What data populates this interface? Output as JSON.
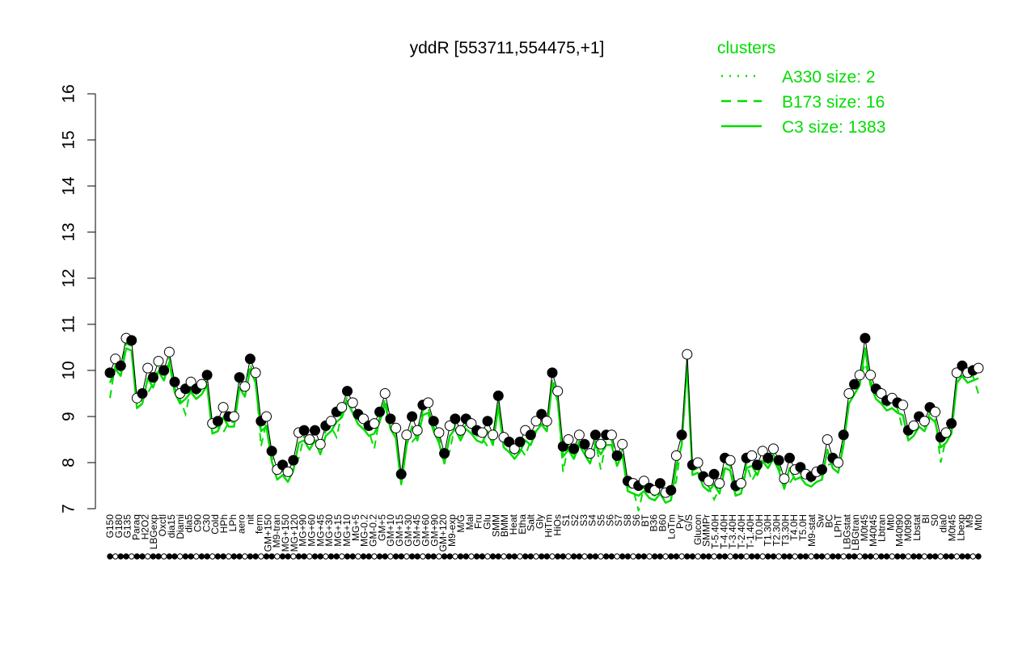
{
  "chart_data": {
    "type": "line",
    "title": "yddR [553711,554475,+1]",
    "xlabel": "",
    "ylabel": "",
    "ylim": [
      7,
      16
    ],
    "yticks": [
      "7",
      "8",
      "9",
      "10",
      "11",
      "12",
      "13",
      "14",
      "15",
      "16"
    ],
    "grid": false,
    "legend": {
      "position": "top-right",
      "title": "clusters",
      "color": "#00dd00",
      "entries": [
        {
          "label": "A330 size: 2",
          "style": "dotted"
        },
        {
          "label": "B173 size: 16",
          "style": "dashed"
        },
        {
          "label": "C3 size: 1383",
          "style": "solid"
        }
      ]
    },
    "colors": {
      "lines": "#00dd00",
      "points_open": "#ffffff",
      "points_filled": "#000000",
      "axis": "#000000"
    },
    "x_tick_labels": [
      "G150",
      "G180",
      "G135",
      "Paraq",
      "H2O2",
      "LBGexp",
      "Oxctl",
      "dia15",
      "Diami",
      "dia5",
      "C90",
      "C30",
      "Cold",
      "HPh",
      "LPh",
      "aero",
      "nit",
      "ferm",
      "GM+150",
      "M9-tran",
      "MG+150",
      "MG+120",
      "MG+90",
      "MG+60",
      "MG+45",
      "MG+30",
      "MG+15",
      "MG+10",
      "MG+5",
      "MG-0.2",
      "GM-0.2",
      "GM+5",
      "GM+10",
      "GM+15",
      "GM+30",
      "GM+45",
      "GM+60",
      "GM+90",
      "GM+120",
      "M9-exp",
      "M/G",
      "Mal",
      "Fru",
      "Glu",
      "SMM",
      "BMM",
      "Heat",
      "Etha",
      "Salt",
      "Gly",
      "HiTm",
      "HiOs",
      "S1",
      "S2",
      "S3",
      "S4",
      "S5",
      "S6",
      "S7",
      "S8",
      "S6",
      "BT",
      "B36",
      "B60",
      "LoTm",
      "Pyr",
      "G/S",
      "Glucon",
      "SMMPr",
      "T-5.40H",
      "T-4.40H",
      "T-3.40H",
      "T-2.40H",
      "T-1.40H",
      "T0.0H",
      "T1.30H",
      "T2.30H",
      "T3.30H",
      "T4.0H",
      "T5.0H",
      "M9-stat",
      "Sw",
      "BC",
      "LPhT",
      "LBGstat",
      "LBGtran",
      "M0t45",
      "M40t45",
      "Lbtran",
      "Mt0",
      "M40t90",
      "M0t90",
      "Lbstat",
      "BI",
      "S0",
      "dia0",
      "M0t45",
      "Lbexp",
      "M9",
      "Mt0"
    ],
    "series": [
      {
        "name": "",
        "style": "solid",
        "points": [
          {
            "x": 1,
            "y": 9.95
          },
          {
            "x": 2,
            "y": 10.25
          },
          {
            "x": 3,
            "y": 10.1
          },
          {
            "x": 4,
            "y": 10.7
          },
          {
            "x": 5,
            "y": 10.65
          },
          {
            "x": 6,
            "y": 9.4
          },
          {
            "x": 7,
            "y": 9.5
          },
          {
            "x": 8,
            "y": 10.05
          },
          {
            "x": 9,
            "y": 9.85
          },
          {
            "x": 10,
            "y": 10.2
          },
          {
            "x": 11,
            "y": 10.0
          },
          {
            "x": 12,
            "y": 10.4
          },
          {
            "x": 13,
            "y": 9.75
          },
          {
            "x": 14,
            "y": 9.5
          },
          {
            "x": 15,
            "y": 9.6
          },
          {
            "x": 16,
            "y": 9.75
          },
          {
            "x": 17,
            "y": 9.6
          },
          {
            "x": 18,
            "y": 9.7
          },
          {
            "x": 19,
            "y": 9.9
          },
          {
            "x": 20,
            "y": 8.85
          },
          {
            "x": 21,
            "y": 8.9
          },
          {
            "x": 22,
            "y": 9.2
          },
          {
            "x": 23,
            "y": 9.0
          },
          {
            "x": 24,
            "y": 9.0
          },
          {
            "x": 25,
            "y": 9.85
          },
          {
            "x": 26,
            "y": 9.65
          },
          {
            "x": 27,
            "y": 10.25
          },
          {
            "x": 28,
            "y": 9.95
          },
          {
            "x": 29,
            "y": 8.9
          },
          {
            "x": 30,
            "y": 9.0
          },
          {
            "x": 31,
            "y": 8.25
          },
          {
            "x": 32,
            "y": 7.85
          },
          {
            "x": 33,
            "y": 7.95
          },
          {
            "x": 34,
            "y": 7.8
          },
          {
            "x": 35,
            "y": 8.05
          },
          {
            "x": 36,
            "y": 8.65
          },
          {
            "x": 37,
            "y": 8.7
          },
          {
            "x": 38,
            "y": 8.5
          },
          {
            "x": 39,
            "y": 8.7
          },
          {
            "x": 40,
            "y": 8.4
          },
          {
            "x": 41,
            "y": 8.8
          },
          {
            "x": 42,
            "y": 8.9
          },
          {
            "x": 43,
            "y": 9.1
          },
          {
            "x": 44,
            "y": 9.2
          },
          {
            "x": 45,
            "y": 9.55
          },
          {
            "x": 46,
            "y": 9.3
          },
          {
            "x": 47,
            "y": 9.05
          },
          {
            "x": 48,
            "y": 8.95
          },
          {
            "x": 49,
            "y": 8.8
          },
          {
            "x": 50,
            "y": 8.85
          },
          {
            "x": 51,
            "y": 9.1
          },
          {
            "x": 52,
            "y": 9.5
          },
          {
            "x": 53,
            "y": 8.95
          },
          {
            "x": 54,
            "y": 8.75
          },
          {
            "x": 55,
            "y": 7.75
          },
          {
            "x": 56,
            "y": 8.6
          },
          {
            "x": 57,
            "y": 9.0
          },
          {
            "x": 58,
            "y": 8.7
          },
          {
            "x": 59,
            "y": 9.25
          },
          {
            "x": 60,
            "y": 9.3
          },
          {
            "x": 61,
            "y": 8.9
          },
          {
            "x": 62,
            "y": 8.65
          },
          {
            "x": 63,
            "y": 8.2
          },
          {
            "x": 64,
            "y": 8.8
          },
          {
            "x": 65,
            "y": 8.95
          },
          {
            "x": 66,
            "y": 8.7
          },
          {
            "x": 67,
            "y": 8.95
          },
          {
            "x": 68,
            "y": 8.85
          },
          {
            "x": 69,
            "y": 8.7
          },
          {
            "x": 70,
            "y": 8.65
          },
          {
            "x": 71,
            "y": 8.9
          },
          {
            "x": 72,
            "y": 8.6
          },
          {
            "x": 73,
            "y": 9.45
          },
          {
            "x": 74,
            "y": 8.55
          },
          {
            "x": 75,
            "y": 8.45
          },
          {
            "x": 76,
            "y": 8.3
          },
          {
            "x": 77,
            "y": 8.45
          },
          {
            "x": 78,
            "y": 8.7
          },
          {
            "x": 79,
            "y": 8.6
          },
          {
            "x": 80,
            "y": 8.9
          },
          {
            "x": 81,
            "y": 9.05
          },
          {
            "x": 82,
            "y": 8.9
          },
          {
            "x": 83,
            "y": 9.95
          },
          {
            "x": 84,
            "y": 9.55
          },
          {
            "x": 85,
            "y": 8.35
          },
          {
            "x": 86,
            "y": 8.5
          },
          {
            "x": 87,
            "y": 8.3
          },
          {
            "x": 88,
            "y": 8.6
          },
          {
            "x": 89,
            "y": 8.4
          },
          {
            "x": 90,
            "y": 8.2
          },
          {
            "x": 91,
            "y": 8.6
          },
          {
            "x": 92,
            "y": 8.4
          },
          {
            "x": 93,
            "y": 8.6
          },
          {
            "x": 94,
            "y": 8.6
          },
          {
            "x": 95,
            "y": 8.15
          },
          {
            "x": 96,
            "y": 8.4
          },
          {
            "x": 97,
            "y": 7.6
          },
          {
            "x": 98,
            "y": 7.55
          },
          {
            "x": 99,
            "y": 7.5
          },
          {
            "x": 100,
            "y": 7.6
          },
          {
            "x": 101,
            "y": 7.45
          },
          {
            "x": 102,
            "y": 7.4
          },
          {
            "x": 103,
            "y": 7.55
          },
          {
            "x": 104,
            "y": 7.35
          },
          {
            "x": 105,
            "y": 7.4
          },
          {
            "x": 106,
            "y": 8.15
          },
          {
            "x": 107,
            "y": 8.6
          },
          {
            "x": 108,
            "y": 10.35
          },
          {
            "x": 109,
            "y": 7.95
          },
          {
            "x": 110,
            "y": 8.0
          },
          {
            "x": 111,
            "y": 7.7
          },
          {
            "x": 112,
            "y": 7.6
          },
          {
            "x": 113,
            "y": 7.75
          },
          {
            "x": 114,
            "y": 7.55
          },
          {
            "x": 115,
            "y": 8.1
          },
          {
            "x": 116,
            "y": 8.05
          },
          {
            "x": 117,
            "y": 7.5
          },
          {
            "x": 118,
            "y": 7.55
          },
          {
            "x": 119,
            "y": 8.1
          },
          {
            "x": 120,
            "y": 8.15
          },
          {
            "x": 121,
            "y": 7.95
          },
          {
            "x": 122,
            "y": 8.25
          },
          {
            "x": 123,
            "y": 8.1
          },
          {
            "x": 124,
            "y": 8.3
          },
          {
            "x": 125,
            "y": 8.05
          },
          {
            "x": 126,
            "y": 7.65
          },
          {
            "x": 127,
            "y": 8.1
          },
          {
            "x": 128,
            "y": 7.85
          },
          {
            "x": 129,
            "y": 7.9
          },
          {
            "x": 130,
            "y": 7.75
          },
          {
            "x": 131,
            "y": 7.7
          },
          {
            "x": 132,
            "y": 7.8
          },
          {
            "x": 133,
            "y": 7.85
          },
          {
            "x": 134,
            "y": 8.5
          },
          {
            "x": 135,
            "y": 8.1
          },
          {
            "x": 136,
            "y": 8.0
          },
          {
            "x": 137,
            "y": 8.6
          },
          {
            "x": 138,
            "y": 9.5
          },
          {
            "x": 139,
            "y": 9.7
          },
          {
            "x": 140,
            "y": 9.9
          },
          {
            "x": 141,
            "y": 10.7
          },
          {
            "x": 142,
            "y": 9.9
          },
          {
            "x": 143,
            "y": 9.6
          },
          {
            "x": 144,
            "y": 9.5
          },
          {
            "x": 145,
            "y": 9.35
          },
          {
            "x": 146,
            "y": 9.4
          },
          {
            "x": 147,
            "y": 9.3
          },
          {
            "x": 148,
            "y": 9.25
          },
          {
            "x": 149,
            "y": 8.7
          },
          {
            "x": 150,
            "y": 8.8
          },
          {
            "x": 151,
            "y": 9.0
          },
          {
            "x": 152,
            "y": 8.9
          },
          {
            "x": 153,
            "y": 9.2
          },
          {
            "x": 154,
            "y": 9.1
          },
          {
            "x": 155,
            "y": 8.55
          },
          {
            "x": 156,
            "y": 8.65
          },
          {
            "x": 157,
            "y": 8.85
          },
          {
            "x": 158,
            "y": 9.95
          },
          {
            "x": 159,
            "y": 10.1
          },
          {
            "x": 160,
            "y": 9.95
          },
          {
            "x": 161,
            "y": 10.0
          },
          {
            "x": 162,
            "y": 10.05
          }
        ]
      }
    ]
  }
}
